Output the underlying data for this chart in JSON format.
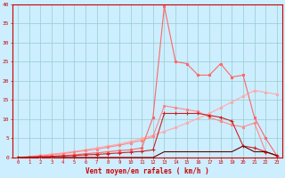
{
  "x": [
    0,
    1,
    2,
    3,
    4,
    5,
    6,
    7,
    8,
    9,
    10,
    11,
    12,
    13,
    14,
    15,
    16,
    17,
    18,
    19,
    20,
    21,
    22,
    23
  ],
  "line_diagonal": [
    0.0,
    0.3,
    0.6,
    0.9,
    1.2,
    1.6,
    2.0,
    2.5,
    3.0,
    3.5,
    4.2,
    5.0,
    5.8,
    6.8,
    7.8,
    9.0,
    10.2,
    11.5,
    13.0,
    14.5,
    16.0,
    17.5,
    17.0,
    16.5
  ],
  "line_curve1": [
    0.0,
    0.2,
    0.4,
    0.7,
    1.0,
    1.4,
    1.8,
    2.2,
    2.7,
    3.2,
    3.8,
    4.5,
    5.5,
    13.5,
    13.0,
    12.5,
    12.0,
    10.5,
    9.5,
    8.5,
    8.0,
    9.0,
    1.5,
    0.5
  ],
  "line_spike": [
    0.0,
    0.1,
    0.2,
    0.3,
    0.5,
    0.7,
    1.0,
    1.2,
    1.5,
    1.8,
    2.0,
    2.5,
    10.5,
    39.5,
    25.0,
    24.5,
    21.5,
    21.5,
    24.5,
    21.0,
    21.5,
    10.5,
    5.0,
    0.5
  ],
  "line_medium": [
    0.0,
    0.1,
    0.2,
    0.3,
    0.4,
    0.5,
    0.7,
    0.8,
    1.0,
    1.2,
    1.4,
    1.6,
    2.0,
    11.5,
    11.5,
    11.5,
    11.5,
    11.0,
    10.5,
    9.5,
    3.0,
    2.5,
    1.5,
    0.5
  ],
  "line_flat": [
    0.0,
    0.0,
    0.0,
    0.0,
    0.0,
    0.0,
    0.0,
    0.0,
    0.0,
    0.0,
    0.0,
    0.0,
    0.0,
    1.5,
    1.5,
    1.5,
    1.5,
    1.5,
    1.5,
    1.5,
    3.0,
    1.5,
    1.5,
    0.5
  ],
  "bg_color": "#cceeff",
  "grid_color": "#99cccc",
  "line_diagonal_color": "#ffaaaa",
  "line_curve1_color": "#ff8888",
  "line_spike_color": "#ff6666",
  "line_medium_color": "#cc2222",
  "line_flat_color": "#660000",
  "xlabel": "Vent moyen/en rafales ( km/h )",
  "ylim": [
    0,
    40
  ],
  "xlim": [
    -0.5,
    23.5
  ],
  "yticks": [
    0,
    5,
    10,
    15,
    20,
    25,
    30,
    35,
    40
  ]
}
